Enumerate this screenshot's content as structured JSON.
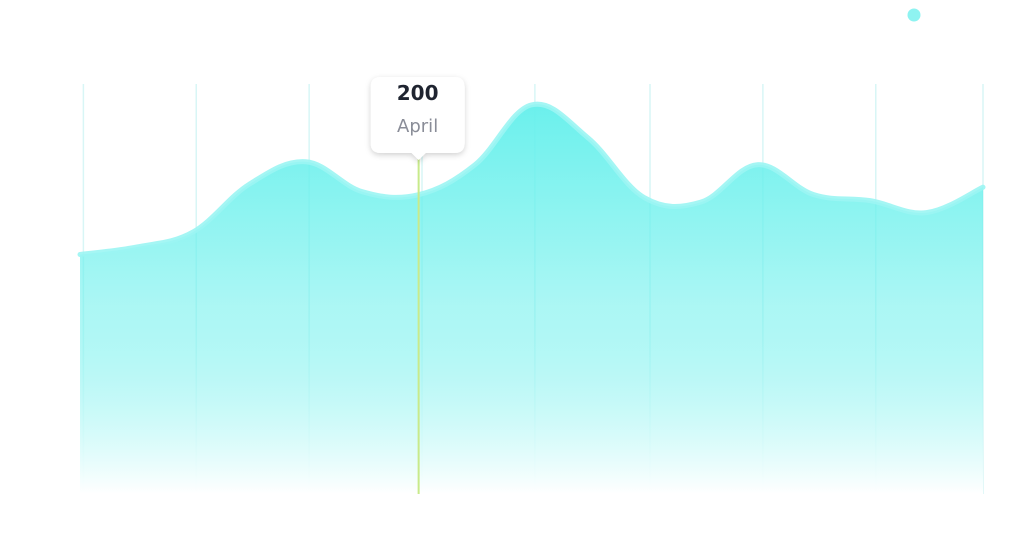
{
  "chart_data": {
    "type": "area",
    "x": [
      0,
      0.5,
      1,
      1.5,
      2,
      2.5,
      3,
      3.5,
      4,
      4.5,
      5,
      5.5,
      6,
      6.5,
      7,
      7.5,
      8
    ],
    "values": [
      160,
      165,
      175,
      207,
      222,
      202,
      200,
      220,
      260,
      238,
      198,
      195,
      220,
      200,
      196,
      188,
      205
    ],
    "ylim": [
      0,
      300
    ],
    "grid": true,
    "colors": {
      "fill_top": "#68F0EC",
      "fill_bottom": "#ffffff",
      "line": "#9BF5F3",
      "grid": "#D8F6F6",
      "highlight": "#C8EA8A",
      "legend_marker": "#8EF3F1"
    },
    "highlight": {
      "x": 3,
      "value": "200",
      "label": "April"
    },
    "legend": {
      "marker_color": "#8EF3F1",
      "placement": "top-right"
    }
  }
}
